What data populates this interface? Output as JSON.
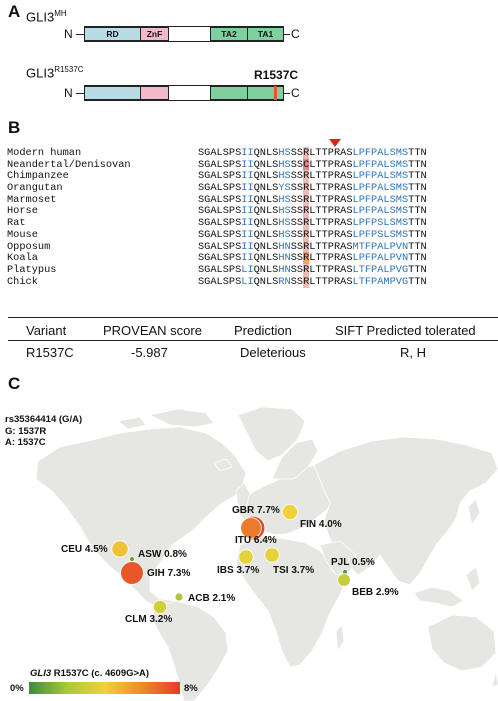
{
  "panel_a": {
    "letter": "A",
    "wildtype": {
      "name": "GLI3",
      "sup": "MH",
      "n": "N",
      "c": "C",
      "domains": [
        "RD",
        "ZnF",
        "TA2",
        "TA1"
      ]
    },
    "variant": {
      "name": "GLI3",
      "sup": "R1537C",
      "n": "N",
      "c": "C",
      "mutation_label": "R1537C"
    },
    "colors": {
      "RD": "#b9dbe6",
      "ZnF": "#f4b9c9",
      "TA": "#7fcf9f",
      "mutation": "#e8542c"
    }
  },
  "panel_b": {
    "letter": "B",
    "species": [
      "Modern human",
      "Neandertal/Denisovan",
      "Chimpanzee",
      "Orangutan",
      "Marmoset",
      "Horse",
      "Rat",
      "Mouse",
      "Opposum",
      "Koala",
      "Platypus",
      "Chick"
    ],
    "sequences": [
      {
        "a": "SGALSPS",
        "b": "II",
        "c": "QNLS",
        "d": "HS",
        "e": "SS",
        "r": "R",
        "f": "LTTPRAS",
        "g": "LPFPALSMS",
        "h": "TTN"
      },
      {
        "a": "SGALSPS",
        "b": "II",
        "c": "QNLS",
        "d": "HS",
        "e": "SS",
        "r": "C",
        "f": "LTTPRAS",
        "g": "LPFPALSMS",
        "h": "TTN"
      },
      {
        "a": "SGALSPS",
        "b": "II",
        "c": "QNLS",
        "d": "HS",
        "e": "SS",
        "r": "R",
        "f": "LTTPRAS",
        "g": "LPFPALSMS",
        "h": "TTN"
      },
      {
        "a": "SGALSPS",
        "b": "II",
        "c": "QNLS",
        "d": "YS",
        "e": "SS",
        "r": "R",
        "f": "LTTPRAS",
        "g": "LPFPALSMS",
        "h": "TTN"
      },
      {
        "a": "SGALSPS",
        "b": "II",
        "c": "QNLS",
        "d": "HS",
        "e": "SS",
        "r": "R",
        "f": "LTTPRAS",
        "g": "LPFPALSMS",
        "h": "TTN"
      },
      {
        "a": "SGALSPS",
        "b": "II",
        "c": "QNLS",
        "d": "HS",
        "e": "SS",
        "r": "R",
        "f": "LTTPRAS",
        "g": "LPFPALSMS",
        "h": "TTN"
      },
      {
        "a": "SGALSPS",
        "b": "II",
        "c": "QNLS",
        "d": "HS",
        "e": "SS",
        "r": "R",
        "f": "LTTPRAS",
        "g": "LPFPSLSMS",
        "h": "TTN"
      },
      {
        "a": "SGALSPS",
        "b": "II",
        "c": "QNLS",
        "d": "HS",
        "e": "SS",
        "r": "R",
        "f": "LTTPRAS",
        "g": "LPFPSLSMS",
        "h": "TTN"
      },
      {
        "a": "SGALSPS",
        "b": "II",
        "c": "QNLS",
        "d": "HN",
        "e": "SS",
        "r": "R",
        "f": "LTTPRAS",
        "g": "MTFPALPVN",
        "h": "TTN"
      },
      {
        "a": "SGALSPS",
        "b": "II",
        "c": "QNLS",
        "d": "HN",
        "e": "SS",
        "r": "R",
        "f": "LTTPRAS",
        "g": "LPFPALPVN",
        "h": "TTN"
      },
      {
        "a": "SGALSPS",
        "b": "LI",
        "c": "QNLS",
        "d": "HN",
        "e": "SS",
        "r": "R",
        "f": "LTTPRAS",
        "g": "LTFPALPVG",
        "h": "TTN"
      },
      {
        "a": "SGALSPS",
        "b": "LI",
        "c": "QNLS",
        "d": "RN",
        "e": "SS",
        "r": "R",
        "f": "LTTPRAS",
        "g": "LTFPAMPVG",
        "h": "TTN"
      }
    ],
    "table": {
      "headers": [
        "Variant",
        "PROVEAN score",
        "Prediction",
        "SIFT Predicted tolerated"
      ],
      "row": [
        "R1537C",
        "-5.987",
        "Deleterious",
        "R, H"
      ]
    }
  },
  "panel_c": {
    "letter": "C",
    "snp": {
      "id": "rs35364414 (G/A)",
      "g": "G: 1537R",
      "a": "A: 1537C"
    },
    "populations": [
      {
        "code": "GBR",
        "label": "GBR 7.7%",
        "freq": 7.7
      },
      {
        "code": "FIN",
        "label": "FIN 4.0%",
        "freq": 4.0
      },
      {
        "code": "ITU",
        "label": "ITU 6.4%",
        "freq": 6.4
      },
      {
        "code": "IBS",
        "label": "IBS 3.7%",
        "freq": 3.7
      },
      {
        "code": "TSI",
        "label": "TSI 3.7%",
        "freq": 3.7
      },
      {
        "code": "CEU",
        "label": "CEU 4.5%",
        "freq": 4.5
      },
      {
        "code": "ASW",
        "label": "ASW 0.8%",
        "freq": 0.8
      },
      {
        "code": "GIH",
        "label": "GIH 7.3%",
        "freq": 7.3
      },
      {
        "code": "ACB",
        "label": "ACB 2.1%",
        "freq": 2.1
      },
      {
        "code": "CLM",
        "label": "CLM 3.2%",
        "freq": 3.2
      },
      {
        "code": "PJL",
        "label": "PJL 0.5%",
        "freq": 0.5
      },
      {
        "code": "BEB",
        "label": "BEB 2.9%",
        "freq": 2.9
      }
    ],
    "legend": {
      "title_gene": "GLI3",
      "title_rest": " R1537C (c. 4609G>A)",
      "min_label": "0%",
      "max_label": "8%",
      "colors": [
        "#3e8a3a",
        "#a6c93a",
        "#f0d23a",
        "#ee8a2a",
        "#e53a2a"
      ]
    },
    "land_color": "#e6e6e3"
  }
}
